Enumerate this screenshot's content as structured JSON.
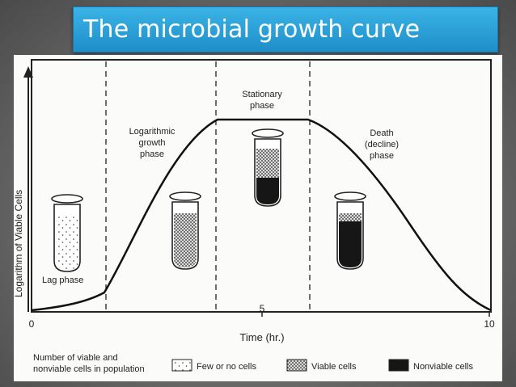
{
  "title": "The microbial growth curve",
  "y_axis_label": "Logarithm of Viable Cells",
  "x_axis_label": "Time (hr.)",
  "x_ticks": [
    "0",
    "5",
    "10"
  ],
  "phases": {
    "lag": "Lag phase",
    "log": [
      "Logarithmic",
      "growth",
      "phase"
    ],
    "stationary": [
      "Stationary",
      "phase"
    ],
    "death": [
      "Death",
      "(decline)",
      "phase"
    ]
  },
  "legend": {
    "caption": [
      "Number of viable and",
      "nonviable cells in population"
    ],
    "few": "Few or no cells",
    "viable": "Viable cells",
    "nonviable": "Nonviable cells"
  },
  "colors": {
    "title_bar": "#2aa3db",
    "title_text": "#ffffff",
    "ink": "#222222"
  }
}
